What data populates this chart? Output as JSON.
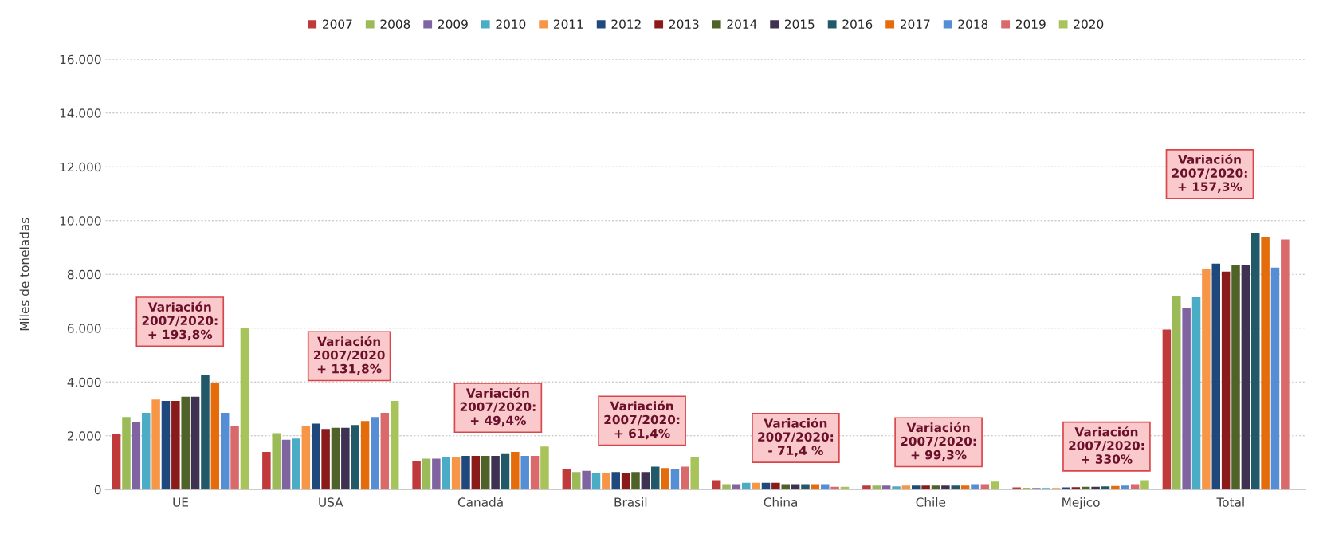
{
  "chart_data": {
    "type": "bar",
    "ylabel": "Miles de toneladas",
    "categories": [
      "UE",
      "USA",
      "Canadá",
      "Brasil",
      "China",
      "Chile",
      "Mejico",
      "Total"
    ],
    "series": [
      {
        "name": "2007",
        "color": "#c0393b",
        "values": [
          2050,
          1400,
          1050,
          750,
          350,
          150,
          80,
          5950
        ]
      },
      {
        "name": "2008",
        "color": "#9bbb59",
        "values": [
          2700,
          2100,
          1150,
          650,
          200,
          150,
          70,
          7200
        ]
      },
      {
        "name": "2009",
        "color": "#8064a2",
        "values": [
          2500,
          1850,
          1150,
          700,
          200,
          150,
          60,
          6750
        ]
      },
      {
        "name": "2010",
        "color": "#4bacc6",
        "values": [
          2850,
          1900,
          1200,
          600,
          250,
          120,
          60,
          7150
        ]
      },
      {
        "name": "2011",
        "color": "#f79646",
        "values": [
          3350,
          2350,
          1200,
          600,
          250,
          150,
          60,
          8200
        ]
      },
      {
        "name": "2012",
        "color": "#1f497d",
        "values": [
          3300,
          2450,
          1250,
          650,
          250,
          150,
          80,
          8400
        ]
      },
      {
        "name": "2013",
        "color": "#8b1a1a",
        "values": [
          3300,
          2250,
          1250,
          600,
          250,
          150,
          90,
          8100
        ]
      },
      {
        "name": "2014",
        "color": "#4f6228",
        "values": [
          3450,
          2300,
          1250,
          650,
          200,
          150,
          100,
          8350
        ]
      },
      {
        "name": "2015",
        "color": "#3f3151",
        "values": [
          3450,
          2300,
          1250,
          650,
          200,
          150,
          100,
          8350
        ]
      },
      {
        "name": "2016",
        "color": "#215968",
        "values": [
          4250,
          2400,
          1350,
          850,
          200,
          150,
          120,
          9550
        ]
      },
      {
        "name": "2017",
        "color": "#e46c0a",
        "values": [
          3950,
          2550,
          1400,
          800,
          200,
          150,
          130,
          9400
        ]
      },
      {
        "name": "2018",
        "color": "#558ed5",
        "values": [
          2850,
          2700,
          1250,
          750,
          200,
          200,
          150,
          8250
        ]
      },
      {
        "name": "2019",
        "color": "#d9696b",
        "values": [
          2350,
          2850,
          1250,
          850,
          100,
          200,
          200,
          9300
        ]
      },
      {
        "name": "2020",
        "color": "#a6c45a",
        "values": [
          6000,
          3300,
          1600,
          1200,
          100,
          300,
          350,
          null
        ]
      }
    ],
    "ylim": [
      0,
      16000
    ],
    "yticks": [
      {
        "value": 0,
        "label": "0"
      },
      {
        "value": 2000,
        "label": "2.000"
      },
      {
        "value": 4000,
        "label": "4.000"
      },
      {
        "value": 6000,
        "label": "6.000"
      },
      {
        "value": 8000,
        "label": "8.000"
      },
      {
        "value": 10000,
        "label": "10.000"
      },
      {
        "value": 12000,
        "label": "12.000"
      },
      {
        "value": 14000,
        "label": "14.000"
      },
      {
        "value": 16000,
        "label": "16.000"
      }
    ],
    "grid": "y",
    "legend": "top",
    "annotations": [
      "Variación\n2007/2020:\n+ 193,8%",
      "Variación\n2007/2020\n+ 131,8%",
      "Variación\n2007/2020:\n+ 49,4%",
      "Variación\n2007/2020:\n+ 61,4%",
      "Variación\n2007/2020:\n- 71,4 %",
      "Variación\n2007/2020:\n+ 99,3%",
      "Variación\n2007/2020:\n+ 330%",
      "Variación\n2007/2020:\n+ 157,3%"
    ]
  }
}
